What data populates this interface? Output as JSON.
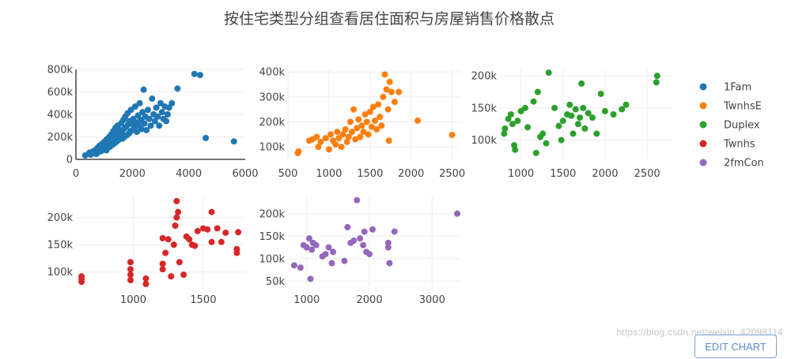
{
  "title": "按住宅类型分组查看居住面积与房屋销售价格散点",
  "watermark": "https://blog.csdn.net/weixin_42098114",
  "edit_button": "EDIT CHART",
  "colors": {
    "1Fam": "#1f77b4",
    "TwnhsE": "#ff7f0e",
    "Duplex": "#2ca02c",
    "Twnhs": "#d62728",
    "2fmCon": "#9467bd"
  },
  "legend": [
    "1Fam",
    "TwnhsE",
    "Duplex",
    "Twnhs",
    "2fmCon"
  ],
  "chart_data": [
    {
      "type": "scatter",
      "name": "1Fam",
      "xlim": [
        0,
        6000
      ],
      "ylim": [
        0,
        800000
      ],
      "xticks": [
        0,
        2000,
        4000,
        6000
      ],
      "xtick_labels": [
        "0",
        "2000",
        "4000",
        "6000"
      ],
      "yticks": [
        0,
        200000,
        400000,
        600000,
        800000
      ],
      "ytick_labels": [
        "0",
        "200k",
        "400k",
        "600k",
        "800k"
      ],
      "points": [
        [
          330,
          35000
        ],
        [
          480,
          60000
        ],
        [
          520,
          42000
        ],
        [
          600,
          70000
        ],
        [
          650,
          55000
        ],
        [
          700,
          85000
        ],
        [
          720,
          48000
        ],
        [
          760,
          100000
        ],
        [
          800,
          65000
        ],
        [
          830,
          120000
        ],
        [
          870,
          90000
        ],
        [
          900,
          75000
        ],
        [
          930,
          140000
        ],
        [
          960,
          110000
        ],
        [
          1000,
          95000
        ],
        [
          1020,
          160000
        ],
        [
          1050,
          125000
        ],
        [
          1080,
          80000
        ],
        [
          1100,
          180000
        ],
        [
          1130,
          135000
        ],
        [
          1150,
          105000
        ],
        [
          1180,
          200000
        ],
        [
          1200,
          150000
        ],
        [
          1220,
          115000
        ],
        [
          1250,
          220000
        ],
        [
          1270,
          170000
        ],
        [
          1300,
          130000
        ],
        [
          1320,
          250000
        ],
        [
          1350,
          190000
        ],
        [
          1380,
          145000
        ],
        [
          1400,
          280000
        ],
        [
          1420,
          210000
        ],
        [
          1450,
          160000
        ],
        [
          1480,
          300000
        ],
        [
          1500,
          230000
        ],
        [
          1520,
          175000
        ],
        [
          1550,
          260000
        ],
        [
          1580,
          190000
        ],
        [
          1600,
          320000
        ],
        [
          1620,
          240000
        ],
        [
          1650,
          185000
        ],
        [
          1680,
          350000
        ],
        [
          1700,
          270000
        ],
        [
          1720,
          200000
        ],
        [
          1750,
          380000
        ],
        [
          1780,
          290000
        ],
        [
          1800,
          215000
        ],
        [
          1830,
          410000
        ],
        [
          1850,
          310000
        ],
        [
          1880,
          230000
        ],
        [
          1900,
          340000
        ],
        [
          1930,
          250000
        ],
        [
          1950,
          440000
        ],
        [
          1980,
          320000
        ],
        [
          2000,
          260000
        ],
        [
          2030,
          360000
        ],
        [
          2060,
          280000
        ],
        [
          2100,
          470000
        ],
        [
          2130,
          330000
        ],
        [
          2160,
          245000
        ],
        [
          2200,
          390000
        ],
        [
          2230,
          300000
        ],
        [
          2260,
          500000
        ],
        [
          2300,
          350000
        ],
        [
          2330,
          270000
        ],
        [
          2360,
          420000
        ],
        [
          2400,
          620000
        ],
        [
          2430,
          320000
        ],
        [
          2460,
          380000
        ],
        [
          2500,
          260000
        ],
        [
          2550,
          440000
        ],
        [
          2600,
          360000
        ],
        [
          2650,
          300000
        ],
        [
          2700,
          540000
        ],
        [
          2750,
          400000
        ],
        [
          2800,
          340000
        ],
        [
          2850,
          460000
        ],
        [
          2900,
          380000
        ],
        [
          2950,
          300000
        ],
        [
          3000,
          500000
        ],
        [
          3050,
          420000
        ],
        [
          3100,
          360000
        ],
        [
          3150,
          470000
        ],
        [
          3200,
          340000
        ],
        [
          3250,
          400000
        ],
        [
          3300,
          460000
        ],
        [
          3400,
          500000
        ],
        [
          3600,
          630000
        ],
        [
          4200,
          760000
        ],
        [
          4400,
          750000
        ],
        [
          4600,
          190000
        ],
        [
          5600,
          160000
        ]
      ]
    },
    {
      "type": "scatter",
      "name": "TwnhsE",
      "xlim": [
        500,
        2600
      ],
      "ylim": [
        50000,
        410000
      ],
      "xticks": [
        500,
        1000,
        1500,
        2000,
        2500
      ],
      "xtick_labels": [
        "500",
        "1000",
        "1500",
        "2000",
        "2500"
      ],
      "yticks": [
        100000,
        200000,
        300000,
        400000
      ],
      "ytick_labels": [
        "100k",
        "200k",
        "300k",
        "400k"
      ],
      "points": [
        [
          620,
          75000
        ],
        [
          630,
          82000
        ],
        [
          760,
          125000
        ],
        [
          800,
          130000
        ],
        [
          850,
          140000
        ],
        [
          870,
          100000
        ],
        [
          900,
          120000
        ],
        [
          960,
          135000
        ],
        [
          1000,
          90000
        ],
        [
          1020,
          150000
        ],
        [
          1050,
          125000
        ],
        [
          1080,
          110000
        ],
        [
          1100,
          160000
        ],
        [
          1120,
          135000
        ],
        [
          1150,
          100000
        ],
        [
          1170,
          150000
        ],
        [
          1200,
          170000
        ],
        [
          1220,
          120000
        ],
        [
          1240,
          140000
        ],
        [
          1260,
          200000
        ],
        [
          1280,
          160000
        ],
        [
          1300,
          250000
        ],
        [
          1320,
          130000
        ],
        [
          1340,
          175000
        ],
        [
          1360,
          210000
        ],
        [
          1380,
          140000
        ],
        [
          1400,
          185000
        ],
        [
          1420,
          160000
        ],
        [
          1440,
          230000
        ],
        [
          1460,
          200000
        ],
        [
          1480,
          150000
        ],
        [
          1500,
          240000
        ],
        [
          1520,
          180000
        ],
        [
          1540,
          260000
        ],
        [
          1560,
          205000
        ],
        [
          1580,
          170000
        ],
        [
          1600,
          270000
        ],
        [
          1620,
          220000
        ],
        [
          1640,
          185000
        ],
        [
          1660,
          300000
        ],
        [
          1680,
          390000
        ],
        [
          1700,
          330000
        ],
        [
          1720,
          250000
        ],
        [
          1740,
          360000
        ],
        [
          1760,
          320000
        ],
        [
          1800,
          280000
        ],
        [
          1850,
          320000
        ],
        [
          1730,
          125000
        ],
        [
          2080,
          205000
        ],
        [
          2500,
          148000
        ]
      ]
    },
    {
      "type": "scatter",
      "name": "Duplex",
      "xlim": [
        750,
        2800
      ],
      "ylim": [
        70000,
        210000
      ],
      "xticks": [
        1000,
        1500,
        2000,
        2500
      ],
      "xtick_labels": [
        "1000",
        "1500",
        "2000",
        "2500"
      ],
      "yticks": [
        100000,
        150000,
        200000
      ],
      "ytick_labels": [
        "100k",
        "150k",
        "200k"
      ],
      "points": [
        [
          800,
          110000
        ],
        [
          810,
          118000
        ],
        [
          850,
          133000
        ],
        [
          880,
          140000
        ],
        [
          900,
          125000
        ],
        [
          920,
          92000
        ],
        [
          930,
          85000
        ],
        [
          960,
          130000
        ],
        [
          1000,
          145000
        ],
        [
          1050,
          150000
        ],
        [
          1080,
          120000
        ],
        [
          1150,
          160000
        ],
        [
          1180,
          80000
        ],
        [
          1200,
          175000
        ],
        [
          1230,
          105000
        ],
        [
          1260,
          110000
        ],
        [
          1300,
          95000
        ],
        [
          1330,
          205000
        ],
        [
          1400,
          150000
        ],
        [
          1450,
          122000
        ],
        [
          1480,
          100000
        ],
        [
          1500,
          130000
        ],
        [
          1550,
          140000
        ],
        [
          1580,
          155000
        ],
        [
          1600,
          138000
        ],
        [
          1620,
          110000
        ],
        [
          1650,
          148000
        ],
        [
          1680,
          125000
        ],
        [
          1700,
          135000
        ],
        [
          1720,
          188000
        ],
        [
          1740,
          150000
        ],
        [
          1760,
          118000
        ],
        [
          1800,
          142000
        ],
        [
          1850,
          135000
        ],
        [
          1900,
          110000
        ],
        [
          1950,
          172000
        ],
        [
          2000,
          145000
        ],
        [
          2100,
          140000
        ],
        [
          2200,
          148000
        ],
        [
          2250,
          155000
        ],
        [
          2610,
          190000
        ],
        [
          2620,
          200000
        ]
      ]
    },
    {
      "type": "scatter",
      "name": "Twnhs",
      "xlim": [
        590,
        1800
      ],
      "ylim": [
        75000,
        240000
      ],
      "xticks": [
        1000,
        1500
      ],
      "xtick_labels": [
        "1000",
        "1500"
      ],
      "yticks": [
        100000,
        150000,
        200000
      ],
      "ytick_labels": [
        "100k",
        "150k",
        "200k"
      ],
      "points": [
        [
          630,
          82000
        ],
        [
          630,
          87000
        ],
        [
          630,
          92000
        ],
        [
          980,
          85000
        ],
        [
          980,
          95000
        ],
        [
          980,
          105000
        ],
        [
          980,
          118000
        ],
        [
          1090,
          78000
        ],
        [
          1090,
          88000
        ],
        [
          1210,
          115000
        ],
        [
          1210,
          105000
        ],
        [
          1210,
          162000
        ],
        [
          1230,
          135000
        ],
        [
          1250,
          160000
        ],
        [
          1270,
          92000
        ],
        [
          1290,
          150000
        ],
        [
          1300,
          185000
        ],
        [
          1310,
          230000
        ],
        [
          1310,
          200000
        ],
        [
          1320,
          210000
        ],
        [
          1330,
          118000
        ],
        [
          1360,
          95000
        ],
        [
          1380,
          165000
        ],
        [
          1400,
          160000
        ],
        [
          1420,
          150000
        ],
        [
          1440,
          148000
        ],
        [
          1460,
          175000
        ],
        [
          1500,
          180000
        ],
        [
          1530,
          178000
        ],
        [
          1560,
          155000
        ],
        [
          1560,
          210000
        ],
        [
          1600,
          180000
        ],
        [
          1630,
          155000
        ],
        [
          1660,
          172000
        ],
        [
          1740,
          135000
        ],
        [
          1740,
          142000
        ],
        [
          1750,
          173000
        ]
      ]
    },
    {
      "type": "scatter",
      "name": "2fmCon",
      "xlim": [
        700,
        3450
      ],
      "ylim": [
        40000,
        240000
      ],
      "xticks": [
        1000,
        2000,
        3000
      ],
      "xtick_labels": [
        "1000",
        "2000",
        "3000"
      ],
      "yticks": [
        50000,
        100000,
        150000,
        200000
      ],
      "ytick_labels": [
        "50k",
        "100k",
        "150k",
        "200k"
      ],
      "points": [
        [
          800,
          85000
        ],
        [
          900,
          80000
        ],
        [
          950,
          130000
        ],
        [
          1000,
          125000
        ],
        [
          1040,
          145000
        ],
        [
          1060,
          55000
        ],
        [
          1080,
          120000
        ],
        [
          1100,
          135000
        ],
        [
          1150,
          130000
        ],
        [
          1250,
          105000
        ],
        [
          1300,
          110000
        ],
        [
          1350,
          125000
        ],
        [
          1400,
          90000
        ],
        [
          1420,
          115000
        ],
        [
          1600,
          95000
        ],
        [
          1650,
          170000
        ],
        [
          1700,
          135000
        ],
        [
          1750,
          140000
        ],
        [
          1800,
          230000
        ],
        [
          1850,
          145000
        ],
        [
          1900,
          130000
        ],
        [
          1920,
          160000
        ],
        [
          1950,
          115000
        ],
        [
          2000,
          110000
        ],
        [
          2050,
          165000
        ],
        [
          2300,
          125000
        ],
        [
          2300,
          135000
        ],
        [
          2320,
          90000
        ],
        [
          2400,
          160000
        ],
        [
          3400,
          200000
        ]
      ]
    }
  ]
}
